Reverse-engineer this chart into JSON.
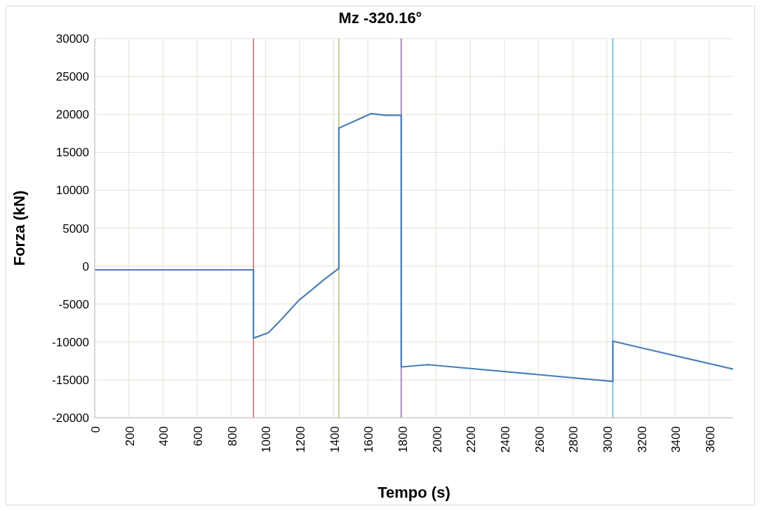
{
  "chart_data": {
    "type": "line",
    "title": "Mz -320.16°",
    "xlabel": "Tempo (s)",
    "ylabel": "Forza (kN)",
    "x": [
      0,
      930,
      930,
      1017,
      1099,
      1196,
      1273,
      1342,
      1430,
      1430,
      1620,
      1700,
      1795,
      1795,
      1952,
      3035,
      3035,
      3740
    ],
    "series": [
      {
        "color": "#4a7ebb",
        "values": [
          -500,
          -500,
          -9500,
          -8800,
          -6900,
          -4500,
          -3100,
          -1800,
          -300,
          18200,
          20100,
          19900,
          19900,
          -13300,
          -13000,
          -15200,
          -9900,
          -13600
        ]
      }
    ],
    "xlim": [
      0,
      3740
    ],
    "xticks": [
      0,
      200,
      400,
      600,
      800,
      1000,
      1200,
      1400,
      1600,
      1800,
      2000,
      2200,
      2400,
      2600,
      2800,
      3000,
      3200,
      3400,
      3600
    ],
    "ylim": [
      -20000,
      30000
    ],
    "yticks": [
      -20000,
      -15000,
      -10000,
      -5000,
      0,
      5000,
      10000,
      15000,
      20000,
      25000,
      30000
    ],
    "ref_lines": [
      {
        "axis": "x",
        "value": 930,
        "color": "#c0504d"
      },
      {
        "axis": "x",
        "value": 1430,
        "color": "#9bbb59"
      },
      {
        "axis": "x",
        "value": 1795,
        "color": "#8064a2"
      },
      {
        "axis": "x",
        "value": 3035,
        "color": "#4bacc6"
      }
    ],
    "grid": true,
    "marker": "none",
    "line_style": "solid"
  }
}
